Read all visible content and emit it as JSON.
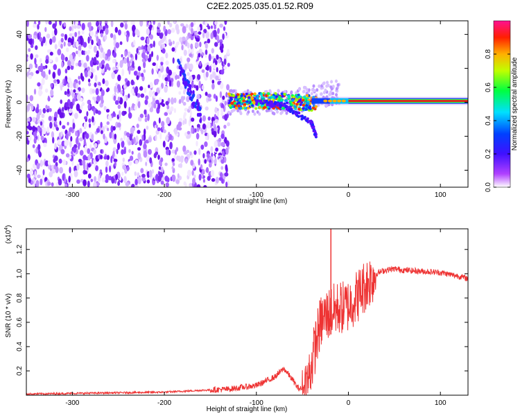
{
  "title": "C2E2.2025.035.01.52.R09",
  "colors": {
    "spectral_high": "#e0303a",
    "snr_line": "#ee3333",
    "spectral_low": "#7a2af0"
  },
  "chart_data": [
    {
      "type": "heatmap",
      "title": "C2E2.2025.035.01.52.R09",
      "xlabel": "Height of straight line (km)",
      "ylabel": "Frequency (Hz)",
      "xlim": [
        -350,
        130
      ],
      "ylim": [
        -50,
        48
      ],
      "xticks": [
        -300,
        -200,
        -100,
        0,
        100
      ],
      "yticks": [
        -40,
        -20,
        0,
        20,
        40
      ],
      "colorbar": {
        "label": "Normalized spectral amplitude",
        "range": [
          0,
          1
        ],
        "ticks": [
          "0.0",
          "0.2",
          "0.4",
          "0.6",
          "0.8"
        ],
        "colormap": [
          "#ffffff",
          "#a000ff",
          "#0000ff",
          "#00ffff",
          "#00ff00",
          "#ffff00",
          "#ff8000",
          "#ff0000",
          "#ff00a0"
        ]
      },
      "features": {
        "noise_region_x": [
          -350,
          -130
        ],
        "signal_start_x": -130,
        "carrier_frequency_hz": 0.8,
        "carrier_amplitude_beyond_x0": 0.95,
        "branch_hz": [
          [
            -100,
            0
          ],
          [
            -70,
            -2
          ],
          [
            -40,
            -12
          ],
          [
            -35,
            -20
          ]
        ]
      }
    },
    {
      "type": "line",
      "title": "",
      "xlabel": "Height of straight line (km)",
      "ylabel": "SNR (10 * v/v)",
      "yscale_label": "(x10",
      "yscale_exponent": "4",
      "xlim": [
        -350,
        130
      ],
      "ylim": [
        0,
        1.37
      ],
      "xticks": [
        -300,
        -200,
        -100,
        0,
        100
      ],
      "yticks": [
        "0.2",
        "0.4",
        "0.6",
        "0.8",
        "1.0",
        "1.2"
      ],
      "series": [
        {
          "x": [
            -350,
            -300,
            -250,
            -200,
            -160,
            -130,
            -100,
            -80,
            -70,
            -60,
            -55,
            -50,
            -45,
            -40,
            -35,
            -30,
            -25,
            -20,
            -15,
            -10,
            -5,
            0,
            10,
            20,
            30,
            40,
            50,
            60,
            80,
            100,
            120,
            130
          ],
          "values": [
            0.01,
            0.015,
            0.02,
            0.025,
            0.04,
            0.05,
            0.08,
            0.15,
            0.22,
            0.12,
            0.06,
            0.05,
            0.1,
            0.25,
            0.45,
            0.6,
            0.65,
            0.68,
            0.7,
            0.72,
            0.72,
            0.74,
            0.82,
            0.92,
            1.0,
            1.03,
            1.04,
            1.03,
            1.02,
            1.01,
            0.98,
            0.96
          ]
        }
      ],
      "annotations": {
        "spike_x": -19,
        "spike_peak": 1.37
      }
    }
  ]
}
